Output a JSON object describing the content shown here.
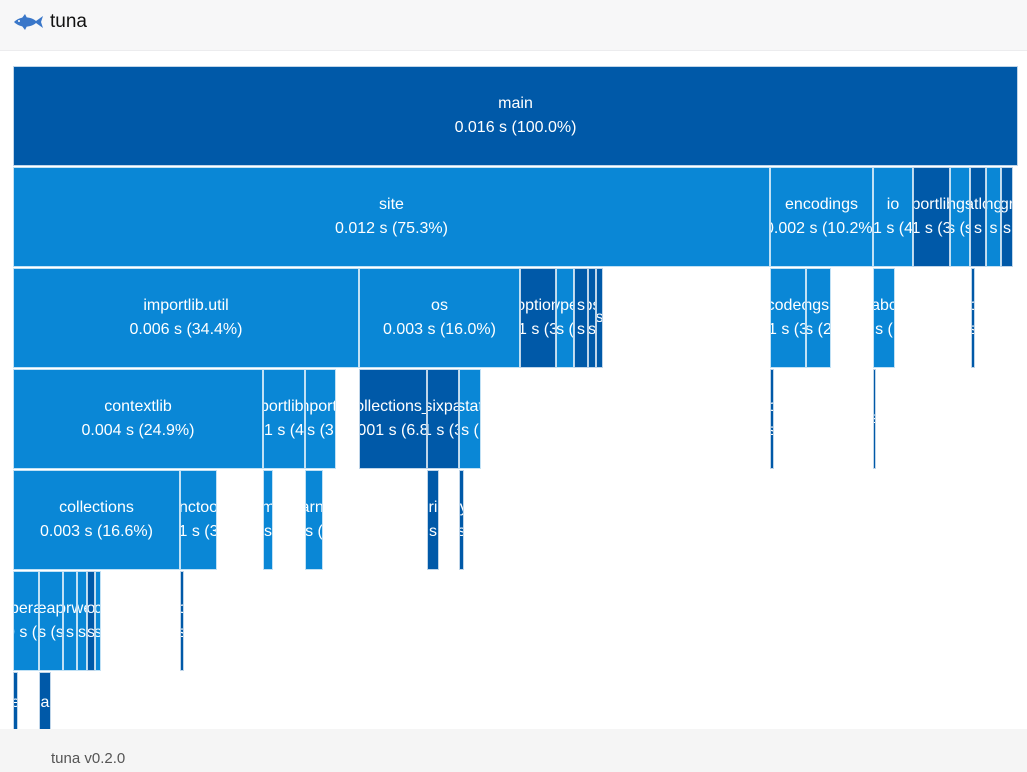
{
  "app": {
    "title": "tuna",
    "logo_icon": "tuna-fish-icon"
  },
  "footer": {
    "version": "tuna v0.2.0"
  },
  "colors": {
    "dark": "#0059a8",
    "light": "#0a87d6",
    "header_bg": "#f7f7f8",
    "footer_bg": "#f5f5f5"
  },
  "icicle": {
    "nodes": [
      {
        "name": "main",
        "time": "0.016 s (100.0%)"
      },
      {
        "name": "site",
        "time": "0.012 s (75.3%)"
      },
      {
        "name": "encodings",
        "time": "0.002 s (10.2%)"
      },
      {
        "name": "io",
        "time": "1 s (4"
      },
      {
        "name": "iportlib",
        "time": "1 s (3"
      },
      {
        "name": "ngs",
        "time": "s (s"
      },
      {
        "name": "atlo",
        "time": "s"
      },
      {
        "name": "ng",
        "time": "s"
      },
      {
        "name": "gr",
        "time": "s"
      },
      {
        "name": "importlib.util",
        "time": "0.006 s (34.4%)"
      },
      {
        "name": "os",
        "time": "0.003 s (16.0%)"
      },
      {
        "name": "option",
        "time": "1 s (3"
      },
      {
        "name": "ype",
        "time": "s ("
      },
      {
        "name": "s",
        "time": "s"
      },
      {
        "name": "ps",
        "time": "s"
      },
      {
        "name": "s",
        "time": ""
      },
      {
        "name": "codec",
        "time": "1 s (3"
      },
      {
        "name": "ngs.",
        "time": "s (2"
      },
      {
        "name": "abc",
        "time": "s ("
      },
      {
        "name": "c",
        "time": "s"
      },
      {
        "name": "contextlib",
        "time": "0.004 s (24.9%)"
      },
      {
        "name": "portlib.",
        "time": "1 s (4"
      },
      {
        "name": "nportl",
        "time": "s (3"
      },
      {
        "name": "ollections_",
        "time": "001 s (6.8"
      },
      {
        "name": "sixpa",
        "time": "1 s (3"
      },
      {
        "name": "stat",
        "time": "s ("
      },
      {
        "name": "c",
        "time": "s"
      },
      {
        "name": "",
        "time": "s"
      },
      {
        "name": "collections",
        "time": "0.003 s (16.6%)"
      },
      {
        "name": "nctoo",
        "time": "1 s (3"
      },
      {
        "name": "m",
        "time": "s"
      },
      {
        "name": "arni",
        "time": "s ("
      },
      {
        "name": "erio",
        "time": "s"
      },
      {
        "name": "ty",
        "time": "s"
      },
      {
        "name": "pera",
        "time": "0 s (2"
      },
      {
        "name": "eap",
        "time": "s (s"
      },
      {
        "name": "prw",
        "time": "s"
      },
      {
        "name": "we",
        "time": "s"
      },
      {
        "name": "o",
        "time": "s"
      },
      {
        "name": "c",
        "time": "s"
      },
      {
        "name": "c",
        "time": "s"
      },
      {
        "name": "e",
        "time": ""
      },
      {
        "name": "eap",
        "time": ""
      }
    ]
  }
}
